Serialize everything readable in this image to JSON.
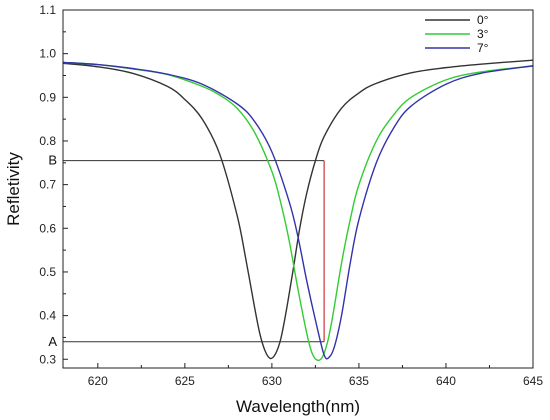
{
  "chart_data": {
    "type": "line",
    "xlabel": "Wavelength(nm)",
    "ylabel": "Refletivity",
    "xlim": [
      618,
      645
    ],
    "ylim": [
      0.28,
      1.1
    ],
    "x_ticks": [
      620,
      625,
      630,
      635,
      640,
      645
    ],
    "y_ticks": [
      0.3,
      0.4,
      0.5,
      0.6,
      0.7,
      0.8,
      0.9,
      1.0,
      1.1
    ],
    "x_tick_labels": [
      "620",
      "625",
      "630",
      "635",
      "640",
      "645"
    ],
    "y_tick_labels": [
      "0.3",
      "0.4",
      "0.5",
      "0.6",
      "0.7",
      "0.8",
      "0.9",
      "1.0",
      "1.1"
    ],
    "legend_position": "top-right",
    "series": [
      {
        "name": "0°",
        "color": "#333333",
        "x": [
          618,
          620,
          622,
          624,
          625,
          626,
          627,
          628,
          628.5,
          629,
          629.3,
          629.6,
          629.9,
          630.2,
          630.5,
          630.8,
          631.2,
          631.6,
          632,
          632.5,
          633,
          634,
          635,
          636,
          638,
          640,
          642,
          645
        ],
        "y": [
          0.978,
          0.97,
          0.955,
          0.925,
          0.895,
          0.85,
          0.77,
          0.63,
          0.53,
          0.42,
          0.36,
          0.32,
          0.302,
          0.312,
          0.345,
          0.405,
          0.5,
          0.6,
          0.68,
          0.755,
          0.81,
          0.875,
          0.91,
          0.932,
          0.956,
          0.968,
          0.976,
          0.985
        ]
      },
      {
        "name": "3°",
        "color": "#33cc33",
        "x": [
          618,
          620,
          622,
          624,
          626,
          627,
          628,
          629,
          630,
          630.5,
          631,
          631.5,
          632,
          632.3,
          632.6,
          632.9,
          633.2,
          633.5,
          634,
          634.5,
          635,
          636,
          637,
          638,
          640,
          642,
          645
        ],
        "y": [
          0.98,
          0.975,
          0.965,
          0.952,
          0.925,
          0.905,
          0.875,
          0.82,
          0.73,
          0.66,
          0.57,
          0.46,
          0.36,
          0.315,
          0.298,
          0.305,
          0.34,
          0.4,
          0.52,
          0.62,
          0.7,
          0.8,
          0.86,
          0.9,
          0.94,
          0.958,
          0.972
        ]
      },
      {
        "name": "7°",
        "color": "#3333aa",
        "x": [
          618,
          620,
          622,
          624,
          626,
          628,
          629,
          630,
          631,
          631.5,
          632,
          632.5,
          633,
          633.3,
          633.6,
          634,
          634.5,
          635,
          636,
          637,
          638,
          640,
          642,
          645
        ],
        "y": [
          0.98,
          0.975,
          0.966,
          0.953,
          0.93,
          0.885,
          0.845,
          0.775,
          0.66,
          0.58,
          0.48,
          0.39,
          0.31,
          0.305,
          0.33,
          0.4,
          0.52,
          0.62,
          0.75,
          0.83,
          0.88,
          0.93,
          0.955,
          0.972
        ]
      }
    ],
    "annotations": [
      {
        "label": "B",
        "y": 0.755,
        "x_end": 633
      },
      {
        "label": "A",
        "y": 0.34,
        "x_end": 633
      }
    ],
    "vertical_marker": {
      "x": 633,
      "y_from": 0.34,
      "y_to": 0.755,
      "color": "#cc3333"
    }
  }
}
